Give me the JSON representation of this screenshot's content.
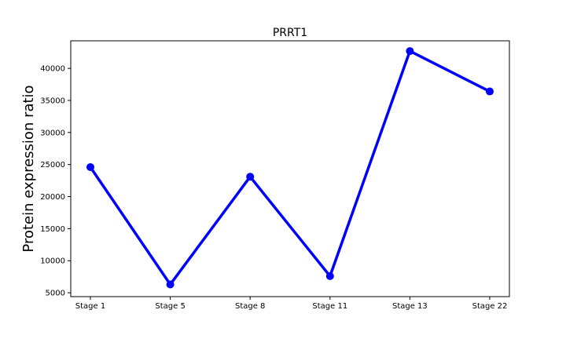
{
  "chart_data": {
    "type": "line",
    "title": "PRRT1",
    "xlabel": "",
    "ylabel": "Protein expression ratio",
    "categories": [
      "Stage 1",
      "Stage 5",
      "Stage 8",
      "Stage 11",
      "Stage 13",
      "Stage 22"
    ],
    "series": [
      {
        "values": [
          24600,
          6300,
          23100,
          7600,
          42700,
          36400
        ],
        "color": "#0000ff"
      }
    ],
    "yticks": [
      5000,
      10000,
      15000,
      20000,
      25000,
      30000,
      35000,
      40000
    ],
    "ylim": [
      4400,
      44300
    ],
    "grid": false,
    "legend": "none"
  }
}
